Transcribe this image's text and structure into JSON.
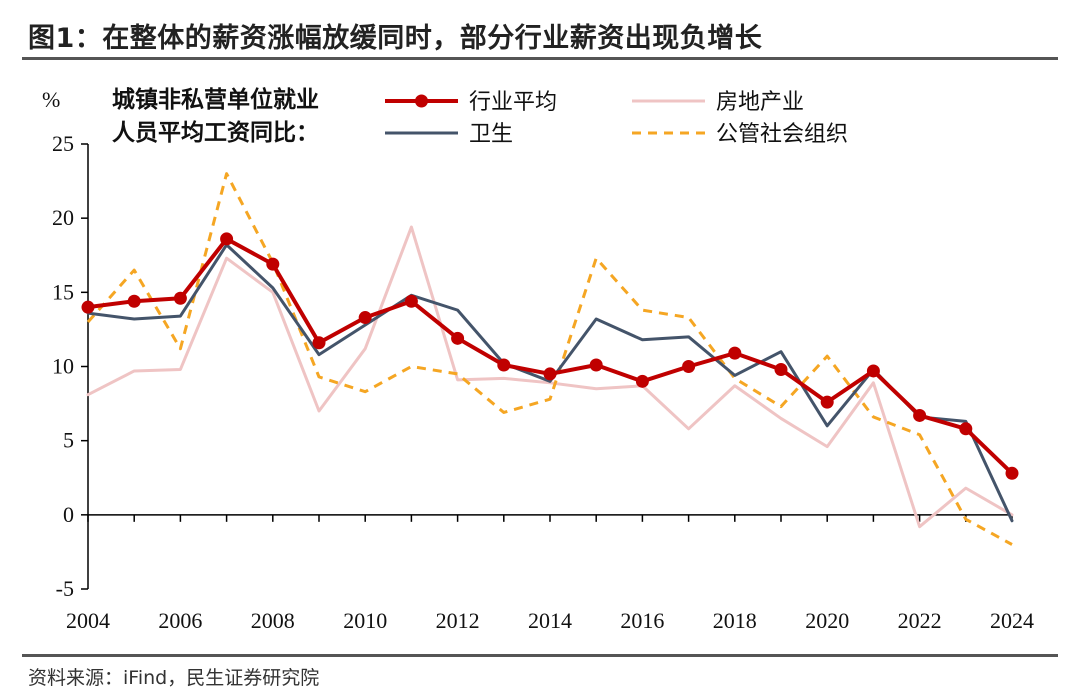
{
  "figure": {
    "title": "图1：在整体的薪资涨幅放缓同时，部分行业薪资出现负增长",
    "source": "资料来源：iFind，民生证券研究院"
  },
  "chart_data": {
    "type": "line",
    "y_unit": "%",
    "annotation": [
      "城镇非私营单位就业",
      "人员平均工资同比："
    ],
    "x": [
      2004,
      2005,
      2006,
      2007,
      2008,
      2009,
      2010,
      2011,
      2012,
      2013,
      2014,
      2015,
      2016,
      2017,
      2018,
      2019,
      2020,
      2021,
      2022,
      2023,
      2024
    ],
    "x_ticks": [
      "2004",
      "2006",
      "2008",
      "2010",
      "2012",
      "2014",
      "2016",
      "2018",
      "2020",
      "2022",
      "2024"
    ],
    "y_ticks": [
      "25",
      "20",
      "15",
      "10",
      "5",
      "0",
      "-5"
    ],
    "ylim": [
      -5,
      25
    ],
    "xlim": [
      2004,
      2024
    ],
    "grid": false,
    "legend_position": "top",
    "series": [
      {
        "name": "房地产业",
        "color": "#EFC4C4",
        "style": "solid",
        "markers": false,
        "values": [
          8.1,
          9.7,
          9.8,
          17.3,
          15.0,
          7.0,
          11.2,
          19.4,
          9.1,
          9.2,
          8.9,
          8.5,
          8.7,
          5.8,
          8.7,
          6.5,
          4.6,
          8.9,
          -0.8,
          1.8,
          0.0
        ]
      },
      {
        "name": "公管社会组织",
        "color": "#F5A623",
        "style": "dashed",
        "markers": false,
        "values": [
          13.0,
          16.5,
          11.2,
          23.0,
          17.0,
          9.3,
          8.3,
          10.0,
          9.5,
          6.9,
          7.8,
          17.3,
          13.8,
          13.3,
          9.2,
          7.3,
          10.7,
          6.6,
          5.4,
          -0.3,
          -2.0
        ]
      },
      {
        "name": "卫生",
        "color": "#44546A",
        "style": "solid",
        "markers": false,
        "values": [
          13.6,
          13.2,
          13.4,
          18.2,
          15.3,
          10.8,
          12.8,
          14.8,
          13.8,
          10.2,
          9.0,
          13.2,
          11.8,
          12.0,
          9.4,
          11.0,
          6.0,
          9.8,
          6.6,
          6.3,
          -0.4
        ]
      },
      {
        "name": "行业平均",
        "color": "#C00000",
        "style": "solid",
        "markers": true,
        "values": [
          14.0,
          14.4,
          14.6,
          18.6,
          16.9,
          11.6,
          13.3,
          14.4,
          11.9,
          10.1,
          9.5,
          10.1,
          9.0,
          10.0,
          10.9,
          9.8,
          7.6,
          9.7,
          6.7,
          5.8,
          2.8
        ]
      }
    ],
    "legend_order": [
      "行业平均",
      "房地产业",
      "卫生",
      "公管社会组织"
    ]
  }
}
